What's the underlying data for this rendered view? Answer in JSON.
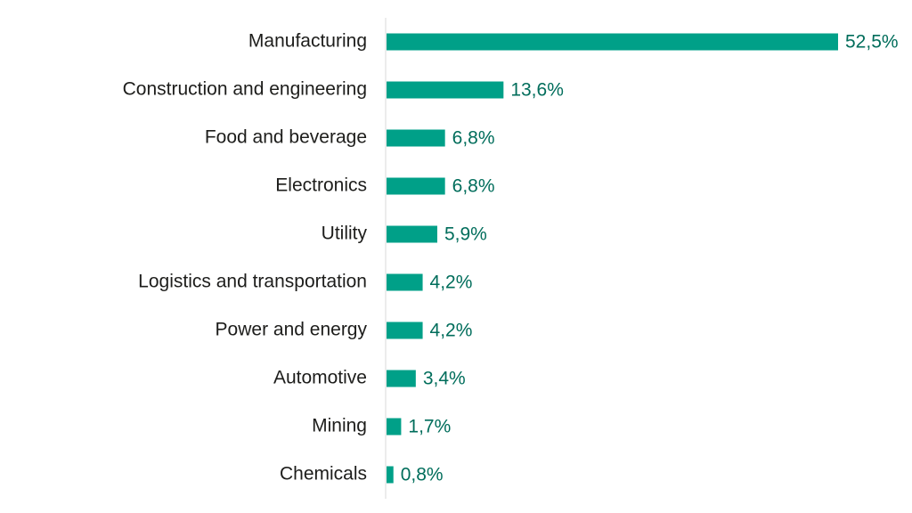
{
  "chart_data": {
    "type": "bar",
    "orientation": "horizontal",
    "title": "",
    "xlabel": "",
    "ylabel": "",
    "xlim": [
      0,
      52.5
    ],
    "grid": false,
    "legend": "none",
    "bar_color": "#00a088",
    "label_color": "#1d1d1b",
    "value_color": "#006d5b",
    "axis_color": "#d9d9d9",
    "categories": [
      "Manufacturing",
      "Construction and engineering",
      "Food and beverage",
      "Electronics",
      "Utility",
      "Logistics and transportation",
      "Power and energy",
      "Automotive",
      "Mining",
      "Chemicals"
    ],
    "values": [
      52.5,
      13.6,
      6.8,
      6.8,
      5.9,
      4.2,
      4.2,
      3.4,
      1.7,
      0.8
    ],
    "value_labels": [
      "52,5%",
      "13,6%",
      "6,8%",
      "6,8%",
      "5,9%",
      "4,2%",
      "4,2%",
      "3,4%",
      "1,7%",
      "0,8%"
    ]
  }
}
